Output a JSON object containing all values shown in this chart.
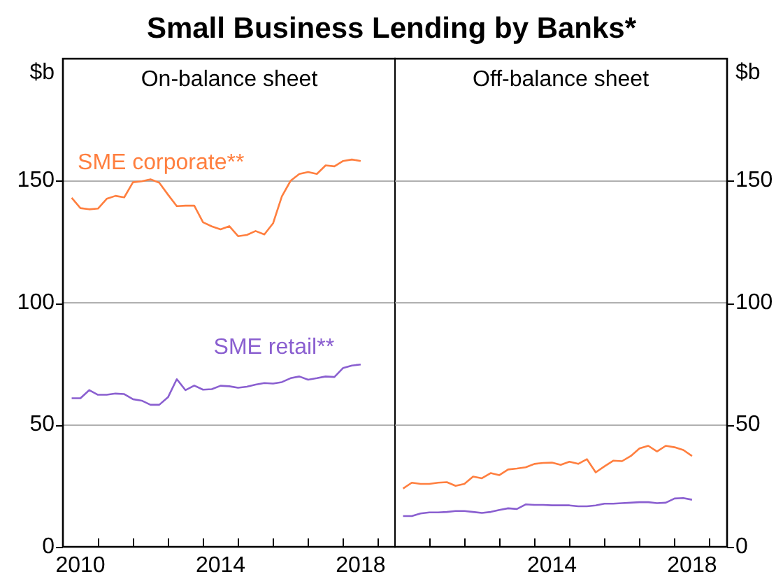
{
  "chart_data": [
    {
      "type": "line",
      "title": "Small Business Lending by Banks*",
      "subtitle": "On-balance sheet",
      "ylabel": "$b",
      "x": [
        2010.25,
        2010.5,
        2010.75,
        2011,
        2011.25,
        2011.5,
        2011.75,
        2012,
        2012.25,
        2012.5,
        2012.75,
        2013,
        2013.25,
        2013.5,
        2013.75,
        2014,
        2014.25,
        2014.5,
        2014.75,
        2015,
        2015.25,
        2015.5,
        2015.75,
        2016,
        2016.25,
        2016.5,
        2016.75,
        2017,
        2017.25,
        2017.5,
        2017.75,
        2018,
        2018.25,
        2018.5
      ],
      "series": [
        {
          "name": "SME corporate**",
          "color": "#ff7f3f",
          "values": [
            143,
            138.8,
            138.3,
            138.6,
            142.6,
            143.8,
            143.2,
            149.4,
            149.8,
            150.6,
            149.2,
            144.3,
            139.6,
            139.8,
            139.8,
            133,
            131.3,
            130.1,
            131.4,
            127.3,
            127.8,
            129.4,
            128,
            132.6,
            143.6,
            150,
            152.8,
            153.6,
            152.8,
            156.3,
            155.9,
            158.1,
            158.7,
            158.1
          ]
        },
        {
          "name": "SME retail**",
          "color": "#8a5fd0",
          "values": [
            60.9,
            60.9,
            64.2,
            62.3,
            62.3,
            62.8,
            62.6,
            60.5,
            59.9,
            58.2,
            58.2,
            61.3,
            68.7,
            64.2,
            66.1,
            64.4,
            64.6,
            66,
            65.8,
            65.2,
            65.6,
            66.5,
            67.1,
            66.9,
            67.5,
            69.1,
            69.8,
            68.5,
            69.1,
            69.8,
            69.6,
            73.3,
            74.3,
            74.7
          ]
        }
      ],
      "xlim": [
        2010,
        2019.5
      ],
      "xticks": [
        {
          "value": 2011,
          "label": null
        },
        {
          "value": 2012,
          "label": null
        },
        {
          "value": 2013,
          "label": null
        },
        {
          "value": 2014,
          "label": null
        },
        {
          "value": 2015,
          "label": null
        },
        {
          "value": 2016,
          "label": null
        },
        {
          "value": 2017,
          "label": null
        },
        {
          "value": 2018,
          "label": null
        },
        {
          "value": 2019,
          "label": null
        },
        {
          "value": 2010.5,
          "label": "2010"
        },
        {
          "value": 2014.5,
          "label": "2014"
        },
        {
          "value": 2018.5,
          "label": "2018"
        }
      ],
      "ylim": [
        0,
        200
      ],
      "yticks": [
        0,
        50,
        100,
        150
      ],
      "grid": "y",
      "legend": false,
      "marker": "none"
    },
    {
      "type": "line",
      "subtitle": "Off-balance sheet",
      "ylabel": "$b",
      "x": [
        2010.25,
        2010.5,
        2010.75,
        2011,
        2011.25,
        2011.5,
        2011.75,
        2012,
        2012.25,
        2012.5,
        2012.75,
        2013,
        2013.25,
        2013.5,
        2013.75,
        2014,
        2014.25,
        2014.5,
        2014.75,
        2015,
        2015.25,
        2015.5,
        2015.75,
        2016,
        2016.25,
        2016.5,
        2016.75,
        2017,
        2017.25,
        2017.5,
        2017.75,
        2018,
        2018.25,
        2018.5
      ],
      "series": [
        {
          "color": "#ff7f3f",
          "values": [
            23.9,
            26.3,
            25.8,
            25.8,
            26.3,
            26.5,
            25,
            25.8,
            28.8,
            28.1,
            30.2,
            29.4,
            31.7,
            32.1,
            32.6,
            34,
            34.4,
            34.5,
            33.6,
            34.9,
            34,
            35.9,
            30.5,
            33,
            35.3,
            35.1,
            37.2,
            40.3,
            41.4,
            39.1,
            41.4,
            40.8,
            39.7,
            37.2
          ]
        },
        {
          "color": "#8a5fd0",
          "values": [
            12.6,
            12.6,
            13.7,
            14.1,
            14.1,
            14.3,
            14.7,
            14.7,
            14.3,
            13.9,
            14.3,
            15.1,
            15.8,
            15.5,
            17.4,
            17.2,
            17.2,
            17,
            17,
            17,
            16.6,
            16.6,
            17,
            17.7,
            17.7,
            17.9,
            18.1,
            18.3,
            18.3,
            17.9,
            18.1,
            19.8,
            20,
            19.3
          ]
        }
      ],
      "xlim": [
        2010,
        2019.5
      ],
      "xticks": [
        {
          "value": 2011,
          "label": null
        },
        {
          "value": 2012,
          "label": null
        },
        {
          "value": 2013,
          "label": null
        },
        {
          "value": 2014,
          "label": null
        },
        {
          "value": 2015,
          "label": null
        },
        {
          "value": 2016,
          "label": null
        },
        {
          "value": 2017,
          "label": null
        },
        {
          "value": 2018,
          "label": null
        },
        {
          "value": 2019,
          "label": null
        },
        {
          "value": 2014.5,
          "label": "2014"
        },
        {
          "value": 2018.5,
          "label": "2018"
        }
      ],
      "ylim": [
        0,
        200
      ],
      "yticks": [
        0,
        50,
        100,
        150
      ],
      "grid": "y",
      "legend": false,
      "marker": "none"
    }
  ]
}
